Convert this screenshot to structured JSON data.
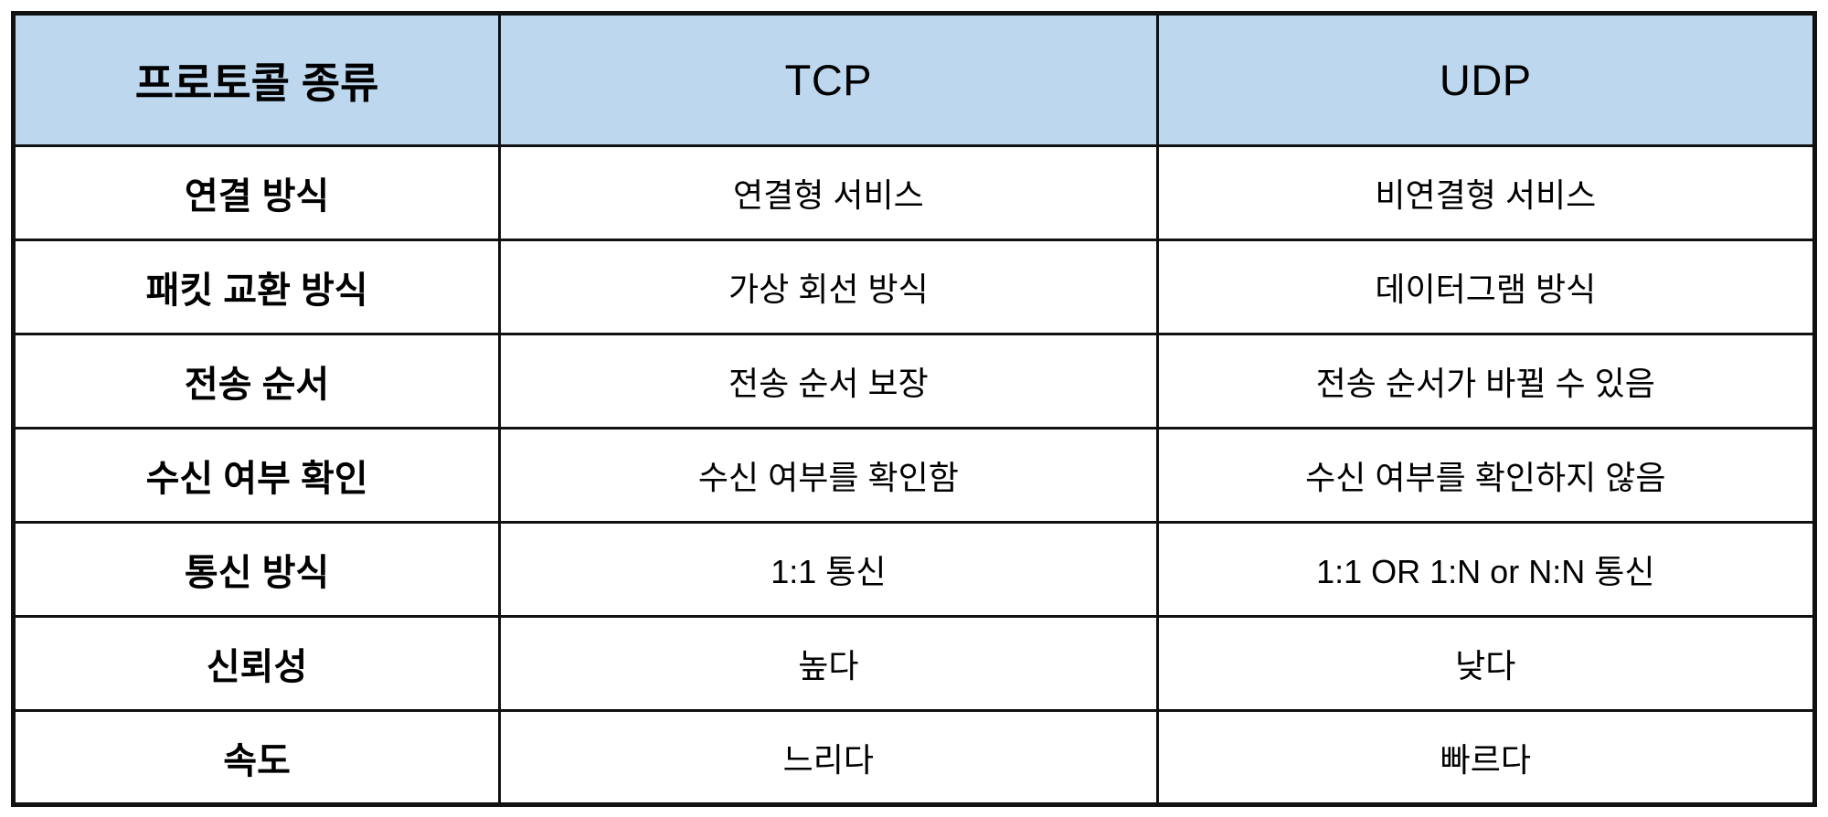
{
  "table": {
    "title": "TCP vs UDP protocol comparison table",
    "colors": {
      "header_bg": "#BDD7EE",
      "border": "#111111",
      "cell_bg": "#FFFFFF",
      "text": "#000000"
    },
    "header": {
      "protocol_type": "프로토콜 종류",
      "tcp": "TCP",
      "udp": "UDP"
    },
    "rows": [
      {
        "label": "연결 방식",
        "tcp": "연결형 서비스",
        "udp": "비연결형 서비스"
      },
      {
        "label": "패킷 교환 방식",
        "tcp": "가상 회선 방식",
        "udp": "데이터그램 방식"
      },
      {
        "label": "전송 순서",
        "tcp": "전송 순서 보장",
        "udp": "전송 순서가 바뀔 수 있음"
      },
      {
        "label": "수신 여부 확인",
        "tcp": "수신 여부를 확인함",
        "udp": "수신 여부를 확인하지 않음"
      },
      {
        "label": "통신 방식",
        "tcp": "1:1 통신",
        "udp": "1:1 OR 1:N or N:N 통신"
      },
      {
        "label": "신뢰성",
        "tcp": "높다",
        "udp": "낮다"
      },
      {
        "label": "속도",
        "tcp": "느리다",
        "udp": "빠르다"
      }
    ]
  }
}
